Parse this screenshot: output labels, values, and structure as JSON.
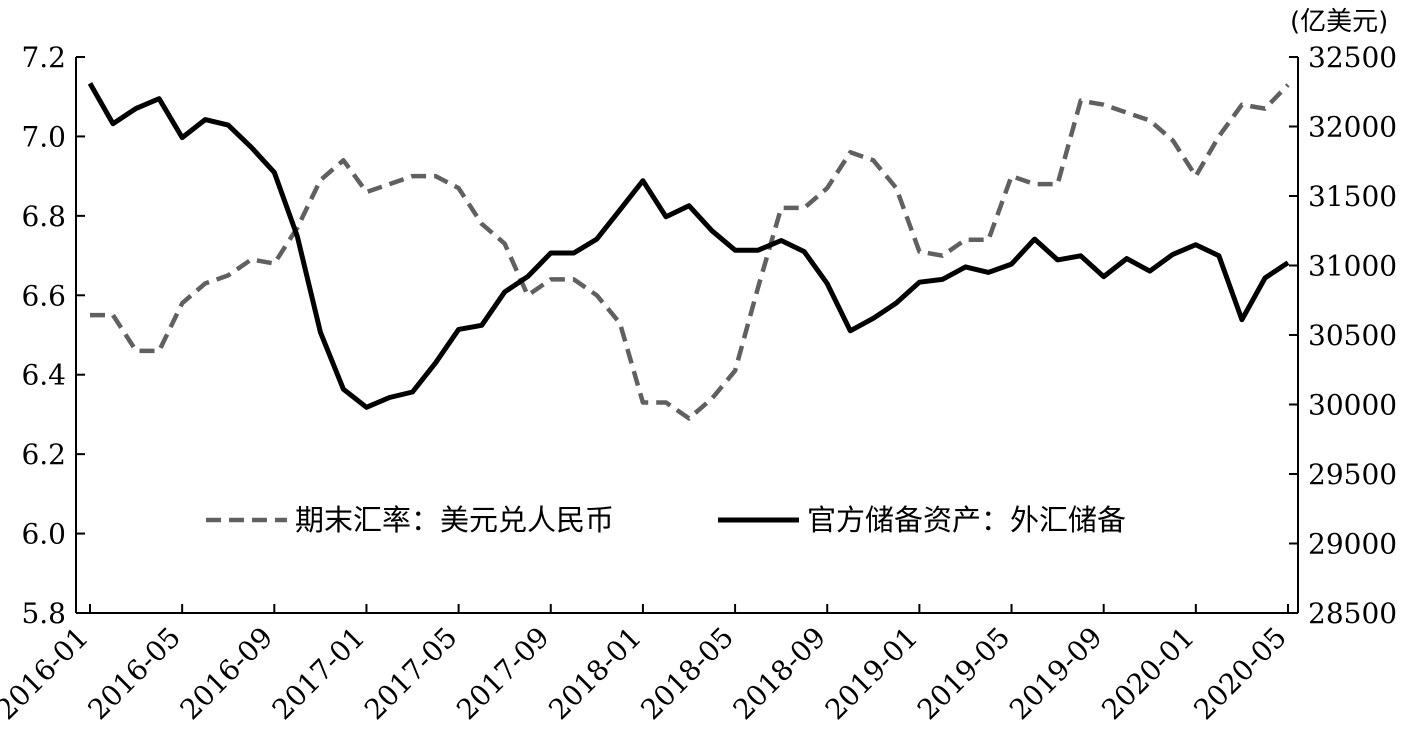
{
  "chart_data": {
    "type": "line",
    "title": "",
    "right_axis_unit": "(亿美元)",
    "categories": [
      "2016-01",
      "2016-02",
      "2016-03",
      "2016-04",
      "2016-05",
      "2016-06",
      "2016-07",
      "2016-08",
      "2016-09",
      "2016-10",
      "2016-11",
      "2016-12",
      "2017-01",
      "2017-02",
      "2017-03",
      "2017-04",
      "2017-05",
      "2017-06",
      "2017-07",
      "2017-08",
      "2017-09",
      "2017-10",
      "2017-11",
      "2017-12",
      "2018-01",
      "2018-02",
      "2018-03",
      "2018-04",
      "2018-05",
      "2018-06",
      "2018-07",
      "2018-08",
      "2018-09",
      "2018-10",
      "2018-11",
      "2018-12",
      "2019-01",
      "2019-02",
      "2019-03",
      "2019-04",
      "2019-05",
      "2019-06",
      "2019-07",
      "2019-08",
      "2019-09",
      "2019-10",
      "2019-11",
      "2019-12",
      "2020-01",
      "2020-02",
      "2020-03",
      "2020-04",
      "2020-05"
    ],
    "x_tick_labels": [
      "2016-01",
      "2016-05",
      "2016-09",
      "2017-01",
      "2017-05",
      "2017-09",
      "2018-01",
      "2018-05",
      "2018-09",
      "2019-01",
      "2019-05",
      "2019-09",
      "2020-01",
      "2020-05"
    ],
    "left_axis": {
      "min": 5.8,
      "max": 7.2,
      "ticks": [
        "5.8",
        "6.0",
        "6.2",
        "6.4",
        "6.6",
        "6.8",
        "7.0",
        "7.2"
      ]
    },
    "right_axis": {
      "min": 28500,
      "max": 32500,
      "ticks": [
        "28500",
        "29000",
        "29500",
        "30000",
        "30500",
        "31000",
        "31500",
        "32000",
        "32500"
      ]
    },
    "grid": false,
    "legend_position": "bottom-center",
    "series": [
      {
        "name": "期末汇率：美元兑人民币",
        "axis": "left",
        "style": "dashed",
        "color": "#606060",
        "values": [
          6.55,
          6.55,
          6.46,
          6.46,
          6.58,
          6.63,
          6.65,
          6.69,
          6.68,
          6.77,
          6.89,
          6.94,
          6.86,
          6.88,
          6.9,
          6.9,
          6.87,
          6.78,
          6.73,
          6.6,
          6.64,
          6.64,
          6.6,
          6.53,
          6.33,
          6.33,
          6.29,
          6.34,
          6.41,
          6.62,
          6.82,
          6.82,
          6.87,
          6.96,
          6.94,
          6.87,
          6.71,
          6.7,
          6.74,
          6.74,
          6.9,
          6.88,
          6.88,
          7.09,
          7.08,
          7.06,
          7.04,
          6.99,
          6.9,
          7.0,
          7.08,
          7.07,
          7.13
        ]
      },
      {
        "name": "官方储备资产：外汇储备",
        "axis": "right",
        "style": "solid",
        "color": "#000000",
        "values": [
          32310,
          32020,
          32130,
          32200,
          31920,
          32050,
          32010,
          31850,
          31670,
          31210,
          30520,
          30110,
          29980,
          30050,
          30090,
          30300,
          30540,
          30570,
          30810,
          30920,
          31090,
          31090,
          31190,
          31400,
          31610,
          31350,
          31430,
          31250,
          31110,
          31110,
          31180,
          31100,
          30870,
          30530,
          30620,
          30730,
          30880,
          30900,
          30990,
          30950,
          31010,
          31190,
          31040,
          31070,
          30920,
          31050,
          30960,
          31080,
          31150,
          31070,
          30610,
          30910,
          31020
        ]
      }
    ]
  }
}
